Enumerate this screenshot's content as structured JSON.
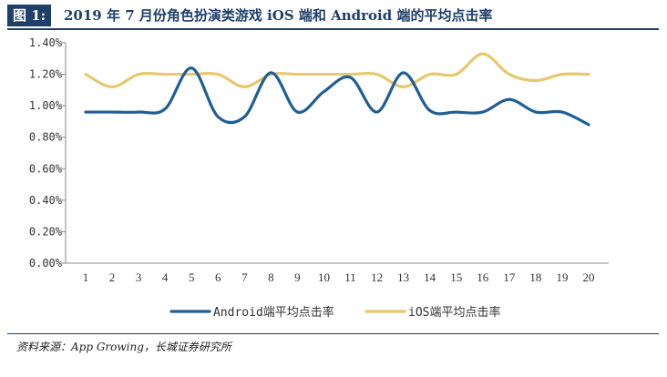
{
  "header": {
    "figure_label": "图 1:",
    "title": "2019 年 7 月份角色扮演类游戏 iOS 端和 Android 端的平均点击率"
  },
  "footer": {
    "source": "资料来源：App Growing，长城证券研究所"
  },
  "colors": {
    "android": "#1f5f96",
    "ios": "#e6c86e",
    "accent": "#1f3f6b"
  },
  "chart_data": {
    "type": "line",
    "title": "",
    "xlabel": "",
    "ylabel": "",
    "x": [
      1,
      2,
      3,
      4,
      5,
      6,
      7,
      8,
      9,
      10,
      11,
      12,
      13,
      14,
      15,
      16,
      17,
      18,
      19,
      20
    ],
    "x_tick_labels": [
      "1",
      "2",
      "3",
      "4",
      "5",
      "6",
      "7",
      "8",
      "9",
      "10",
      "11",
      "12",
      "13",
      "14",
      "15",
      "16",
      "17",
      "18",
      "19",
      "20"
    ],
    "ylim": [
      0,
      1.4
    ],
    "y_ticks": [
      0,
      0.2,
      0.4,
      0.6,
      0.8,
      1.0,
      1.2,
      1.4
    ],
    "y_tick_labels": [
      "0.00%",
      "0.20%",
      "0.40%",
      "0.60%",
      "0.80%",
      "1.00%",
      "1.20%",
      "1.40%"
    ],
    "grid": false,
    "legend_position": "bottom",
    "series": [
      {
        "name": "Android端平均点击率",
        "values": [
          0.96,
          0.96,
          0.96,
          0.98,
          1.24,
          0.93,
          0.93,
          1.21,
          0.96,
          1.09,
          1.18,
          0.96,
          1.21,
          0.97,
          0.96,
          0.96,
          1.04,
          0.96,
          0.96,
          0.88
        ]
      },
      {
        "name": "iOS端平均点击率",
        "values": [
          1.2,
          1.12,
          1.2,
          1.2,
          1.2,
          1.2,
          1.12,
          1.2,
          1.2,
          1.2,
          1.2,
          1.2,
          1.12,
          1.2,
          1.2,
          1.33,
          1.2,
          1.16,
          1.2,
          1.2
        ]
      }
    ]
  }
}
